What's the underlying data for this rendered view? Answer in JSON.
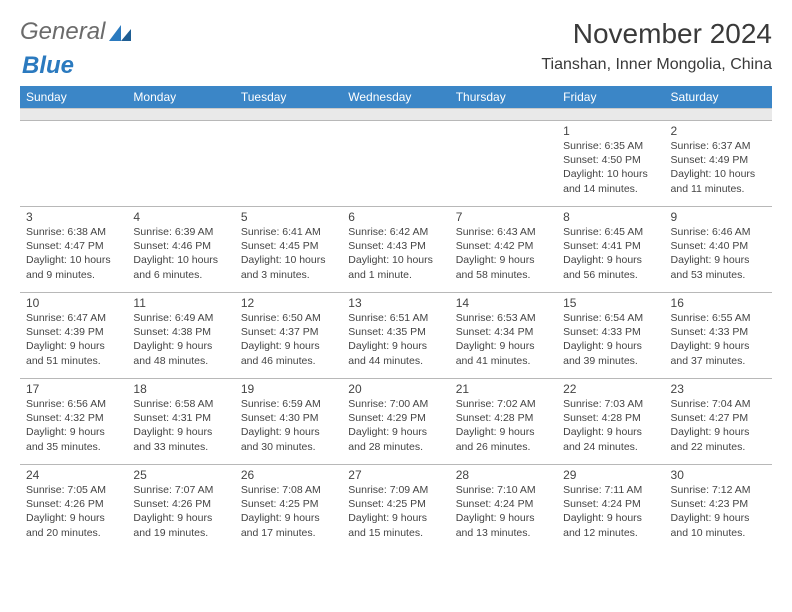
{
  "brand": {
    "part1": "General",
    "part2": "Blue"
  },
  "title": "November 2024",
  "location": "Tianshan, Inner Mongolia, China",
  "colors": {
    "header_bg": "#3b86c7",
    "header_text": "#ffffff",
    "blank_bg": "#e9e9e9",
    "border": "#b8b8b8",
    "brand_gray": "#6b6b6b",
    "brand_blue": "#2b7abf",
    "text": "#444444"
  },
  "day_headers": [
    "Sunday",
    "Monday",
    "Tuesday",
    "Wednesday",
    "Thursday",
    "Friday",
    "Saturday"
  ],
  "weeks": [
    [
      {
        "num": "",
        "sunrise": "",
        "sunset": "",
        "daylight": ""
      },
      {
        "num": "",
        "sunrise": "",
        "sunset": "",
        "daylight": ""
      },
      {
        "num": "",
        "sunrise": "",
        "sunset": "",
        "daylight": ""
      },
      {
        "num": "",
        "sunrise": "",
        "sunset": "",
        "daylight": ""
      },
      {
        "num": "",
        "sunrise": "",
        "sunset": "",
        "daylight": ""
      },
      {
        "num": "1",
        "sunrise": "Sunrise: 6:35 AM",
        "sunset": "Sunset: 4:50 PM",
        "daylight": "Daylight: 10 hours and 14 minutes."
      },
      {
        "num": "2",
        "sunrise": "Sunrise: 6:37 AM",
        "sunset": "Sunset: 4:49 PM",
        "daylight": "Daylight: 10 hours and 11 minutes."
      }
    ],
    [
      {
        "num": "3",
        "sunrise": "Sunrise: 6:38 AM",
        "sunset": "Sunset: 4:47 PM",
        "daylight": "Daylight: 10 hours and 9 minutes."
      },
      {
        "num": "4",
        "sunrise": "Sunrise: 6:39 AM",
        "sunset": "Sunset: 4:46 PM",
        "daylight": "Daylight: 10 hours and 6 minutes."
      },
      {
        "num": "5",
        "sunrise": "Sunrise: 6:41 AM",
        "sunset": "Sunset: 4:45 PM",
        "daylight": "Daylight: 10 hours and 3 minutes."
      },
      {
        "num": "6",
        "sunrise": "Sunrise: 6:42 AM",
        "sunset": "Sunset: 4:43 PM",
        "daylight": "Daylight: 10 hours and 1 minute."
      },
      {
        "num": "7",
        "sunrise": "Sunrise: 6:43 AM",
        "sunset": "Sunset: 4:42 PM",
        "daylight": "Daylight: 9 hours and 58 minutes."
      },
      {
        "num": "8",
        "sunrise": "Sunrise: 6:45 AM",
        "sunset": "Sunset: 4:41 PM",
        "daylight": "Daylight: 9 hours and 56 minutes."
      },
      {
        "num": "9",
        "sunrise": "Sunrise: 6:46 AM",
        "sunset": "Sunset: 4:40 PM",
        "daylight": "Daylight: 9 hours and 53 minutes."
      }
    ],
    [
      {
        "num": "10",
        "sunrise": "Sunrise: 6:47 AM",
        "sunset": "Sunset: 4:39 PM",
        "daylight": "Daylight: 9 hours and 51 minutes."
      },
      {
        "num": "11",
        "sunrise": "Sunrise: 6:49 AM",
        "sunset": "Sunset: 4:38 PM",
        "daylight": "Daylight: 9 hours and 48 minutes."
      },
      {
        "num": "12",
        "sunrise": "Sunrise: 6:50 AM",
        "sunset": "Sunset: 4:37 PM",
        "daylight": "Daylight: 9 hours and 46 minutes."
      },
      {
        "num": "13",
        "sunrise": "Sunrise: 6:51 AM",
        "sunset": "Sunset: 4:35 PM",
        "daylight": "Daylight: 9 hours and 44 minutes."
      },
      {
        "num": "14",
        "sunrise": "Sunrise: 6:53 AM",
        "sunset": "Sunset: 4:34 PM",
        "daylight": "Daylight: 9 hours and 41 minutes."
      },
      {
        "num": "15",
        "sunrise": "Sunrise: 6:54 AM",
        "sunset": "Sunset: 4:33 PM",
        "daylight": "Daylight: 9 hours and 39 minutes."
      },
      {
        "num": "16",
        "sunrise": "Sunrise: 6:55 AM",
        "sunset": "Sunset: 4:33 PM",
        "daylight": "Daylight: 9 hours and 37 minutes."
      }
    ],
    [
      {
        "num": "17",
        "sunrise": "Sunrise: 6:56 AM",
        "sunset": "Sunset: 4:32 PM",
        "daylight": "Daylight: 9 hours and 35 minutes."
      },
      {
        "num": "18",
        "sunrise": "Sunrise: 6:58 AM",
        "sunset": "Sunset: 4:31 PM",
        "daylight": "Daylight: 9 hours and 33 minutes."
      },
      {
        "num": "19",
        "sunrise": "Sunrise: 6:59 AM",
        "sunset": "Sunset: 4:30 PM",
        "daylight": "Daylight: 9 hours and 30 minutes."
      },
      {
        "num": "20",
        "sunrise": "Sunrise: 7:00 AM",
        "sunset": "Sunset: 4:29 PM",
        "daylight": "Daylight: 9 hours and 28 minutes."
      },
      {
        "num": "21",
        "sunrise": "Sunrise: 7:02 AM",
        "sunset": "Sunset: 4:28 PM",
        "daylight": "Daylight: 9 hours and 26 minutes."
      },
      {
        "num": "22",
        "sunrise": "Sunrise: 7:03 AM",
        "sunset": "Sunset: 4:28 PM",
        "daylight": "Daylight: 9 hours and 24 minutes."
      },
      {
        "num": "23",
        "sunrise": "Sunrise: 7:04 AM",
        "sunset": "Sunset: 4:27 PM",
        "daylight": "Daylight: 9 hours and 22 minutes."
      }
    ],
    [
      {
        "num": "24",
        "sunrise": "Sunrise: 7:05 AM",
        "sunset": "Sunset: 4:26 PM",
        "daylight": "Daylight: 9 hours and 20 minutes."
      },
      {
        "num": "25",
        "sunrise": "Sunrise: 7:07 AM",
        "sunset": "Sunset: 4:26 PM",
        "daylight": "Daylight: 9 hours and 19 minutes."
      },
      {
        "num": "26",
        "sunrise": "Sunrise: 7:08 AM",
        "sunset": "Sunset: 4:25 PM",
        "daylight": "Daylight: 9 hours and 17 minutes."
      },
      {
        "num": "27",
        "sunrise": "Sunrise: 7:09 AM",
        "sunset": "Sunset: 4:25 PM",
        "daylight": "Daylight: 9 hours and 15 minutes."
      },
      {
        "num": "28",
        "sunrise": "Sunrise: 7:10 AM",
        "sunset": "Sunset: 4:24 PM",
        "daylight": "Daylight: 9 hours and 13 minutes."
      },
      {
        "num": "29",
        "sunrise": "Sunrise: 7:11 AM",
        "sunset": "Sunset: 4:24 PM",
        "daylight": "Daylight: 9 hours and 12 minutes."
      },
      {
        "num": "30",
        "sunrise": "Sunrise: 7:12 AM",
        "sunset": "Sunset: 4:23 PM",
        "daylight": "Daylight: 9 hours and 10 minutes."
      }
    ]
  ]
}
